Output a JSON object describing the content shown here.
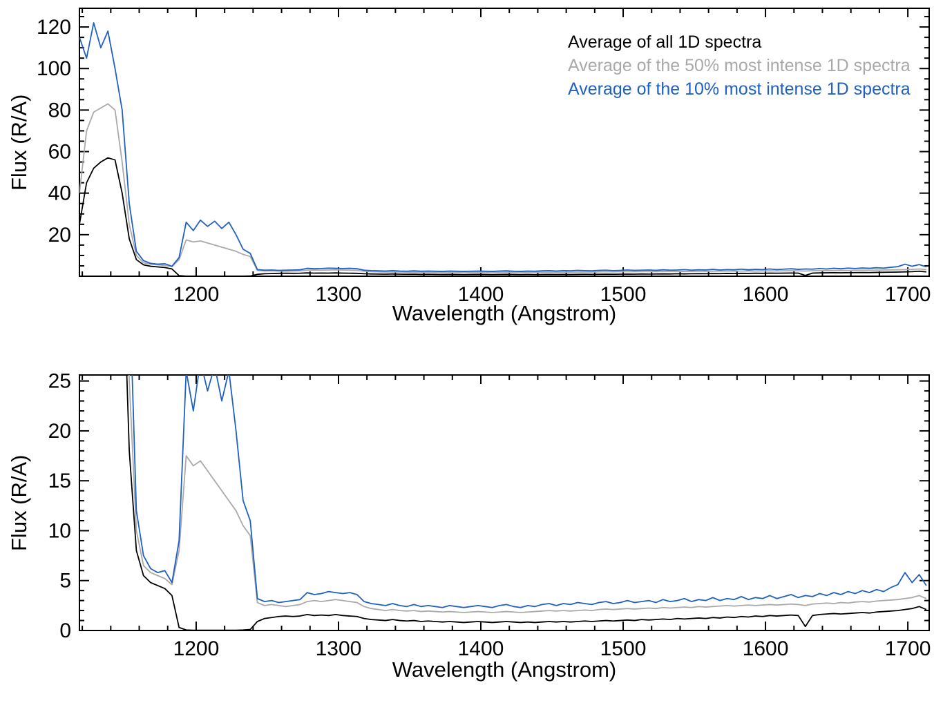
{
  "chart_data": {
    "type": "line",
    "title": "",
    "xlabel": "Wavelength (Angstrom)",
    "ylabel": "Flux (R/A)",
    "xlim": [
      1118,
      1715
    ],
    "xticks": [
      1200,
      1300,
      1400,
      1500,
      1600,
      1700
    ],
    "x_minor_step": 20,
    "x_start": 1118,
    "x_step": 5,
    "n_points": 120,
    "grid": false,
    "legend_position": "top-right-inside-first-panel",
    "panels": [
      {
        "name": "full-scale",
        "ylim": [
          0,
          129
        ],
        "yticks": [
          20,
          40,
          60,
          80,
          100,
          120
        ],
        "y_minor_step": 5
      },
      {
        "name": "zoomed",
        "ylim": [
          0,
          25.6
        ],
        "yticks": [
          0,
          5,
          10,
          15,
          20,
          25
        ],
        "y_minor_step": 1
      }
    ],
    "series": [
      {
        "name": "Average of all 1D spectra",
        "color": "#000000",
        "values": [
          25,
          45,
          52,
          55,
          57,
          56,
          40,
          18,
          8,
          5.5,
          4.8,
          4.5,
          4.2,
          3.5,
          0.3,
          0.05,
          0.02,
          0.02,
          0.02,
          0.02,
          0.02,
          0.02,
          0.02,
          0.05,
          0.1,
          0.9,
          1.2,
          1.3,
          1.4,
          1.45,
          1.4,
          1.45,
          1.6,
          1.5,
          1.55,
          1.5,
          1.6,
          1.5,
          1.45,
          1.4,
          1.2,
          1.1,
          1.05,
          1.0,
          1.1,
          1.0,
          0.95,
          1.0,
          0.9,
          0.95,
          0.9,
          0.85,
          0.9,
          0.85,
          0.8,
          0.85,
          0.9,
          0.85,
          0.8,
          0.85,
          0.9,
          0.85,
          0.8,
          0.85,
          0.8,
          0.85,
          0.9,
          0.85,
          0.9,
          0.85,
          0.9,
          0.95,
          0.9,
          0.95,
          1.0,
          0.95,
          1.0,
          1.05,
          1.0,
          1.1,
          1.05,
          1.1,
          1.15,
          1.1,
          1.2,
          1.15,
          1.2,
          1.25,
          1.2,
          1.3,
          1.25,
          1.35,
          1.3,
          1.4,
          1.35,
          1.45,
          1.4,
          1.5,
          1.45,
          1.5,
          1.55,
          1.5,
          0.4,
          1.5,
          1.6,
          1.65,
          1.7,
          1.65,
          1.7,
          1.75,
          1.8,
          1.75,
          1.85,
          1.9,
          1.95,
          2.0,
          2.1,
          2.2,
          2.4,
          2.1
        ]
      },
      {
        "name": "Average of the 50% most intense 1D spectra",
        "color": "#a9a9a9",
        "values": [
          40,
          70,
          79,
          81,
          83,
          80,
          55,
          25,
          10,
          6.5,
          5.8,
          5.5,
          5.2,
          4.6,
          8,
          17.5,
          16.5,
          17,
          16,
          15,
          14,
          13,
          12,
          10.5,
          9.5,
          2.8,
          2.5,
          2.6,
          2.5,
          2.4,
          2.5,
          2.6,
          2.9,
          3.0,
          2.9,
          3.0,
          3.1,
          3.0,
          2.9,
          2.8,
          2.4,
          2.2,
          2.1,
          2.0,
          2.1,
          2.0,
          1.95,
          2.0,
          1.9,
          1.95,
          1.9,
          1.85,
          1.9,
          1.85,
          1.8,
          1.85,
          1.9,
          1.85,
          1.8,
          1.85,
          1.9,
          1.85,
          1.8,
          1.85,
          1.9,
          1.95,
          2.0,
          1.95,
          2.0,
          1.95,
          2.0,
          2.05,
          2.0,
          2.1,
          2.15,
          2.1,
          2.15,
          2.2,
          2.15,
          2.2,
          2.25,
          2.2,
          2.3,
          2.25,
          2.3,
          2.35,
          2.3,
          2.4,
          2.35,
          2.4,
          2.45,
          2.5,
          2.45,
          2.5,
          2.55,
          2.5,
          2.55,
          2.6,
          2.55,
          2.6,
          2.65,
          2.6,
          2.5,
          2.65,
          2.7,
          2.75,
          2.7,
          2.8,
          2.75,
          2.85,
          2.9,
          2.85,
          2.95,
          3.0,
          3.05,
          3.1,
          3.2,
          3.3,
          3.5,
          3.2
        ]
      },
      {
        "name": "Average of the 10% most intense 1D spectra",
        "color": "#2060c0",
        "values": [
          115,
          105,
          122,
          110,
          118,
          100,
          80,
          35,
          12,
          7.5,
          6.2,
          5.8,
          6.0,
          4.8,
          9,
          26,
          22,
          27,
          24,
          26.5,
          23,
          26,
          20,
          13,
          11,
          3.2,
          2.9,
          3.0,
          2.8,
          2.9,
          3.0,
          3.1,
          3.8,
          3.6,
          3.7,
          3.9,
          3.8,
          3.7,
          3.8,
          3.6,
          2.9,
          2.7,
          2.6,
          2.5,
          2.7,
          2.5,
          2.4,
          2.6,
          2.4,
          2.5,
          2.4,
          2.3,
          2.5,
          2.4,
          2.3,
          2.4,
          2.5,
          2.4,
          2.3,
          2.5,
          2.6,
          2.4,
          2.3,
          2.5,
          2.4,
          2.6,
          2.7,
          2.5,
          2.7,
          2.6,
          2.8,
          2.7,
          2.6,
          2.8,
          2.9,
          2.7,
          2.8,
          3.0,
          2.8,
          2.9,
          3.0,
          2.8,
          3.1,
          2.9,
          3.0,
          3.2,
          2.9,
          3.1,
          3.0,
          3.3,
          3.0,
          3.2,
          3.1,
          3.4,
          3.1,
          3.3,
          3.2,
          3.5,
          3.2,
          3.4,
          3.6,
          3.3,
          3.5,
          3.4,
          3.7,
          3.5,
          3.8,
          3.6,
          3.9,
          3.7,
          4.0,
          3.8,
          4.1,
          3.9,
          4.3,
          4.6,
          5.8,
          4.8,
          5.6,
          4.5
        ]
      }
    ]
  }
}
